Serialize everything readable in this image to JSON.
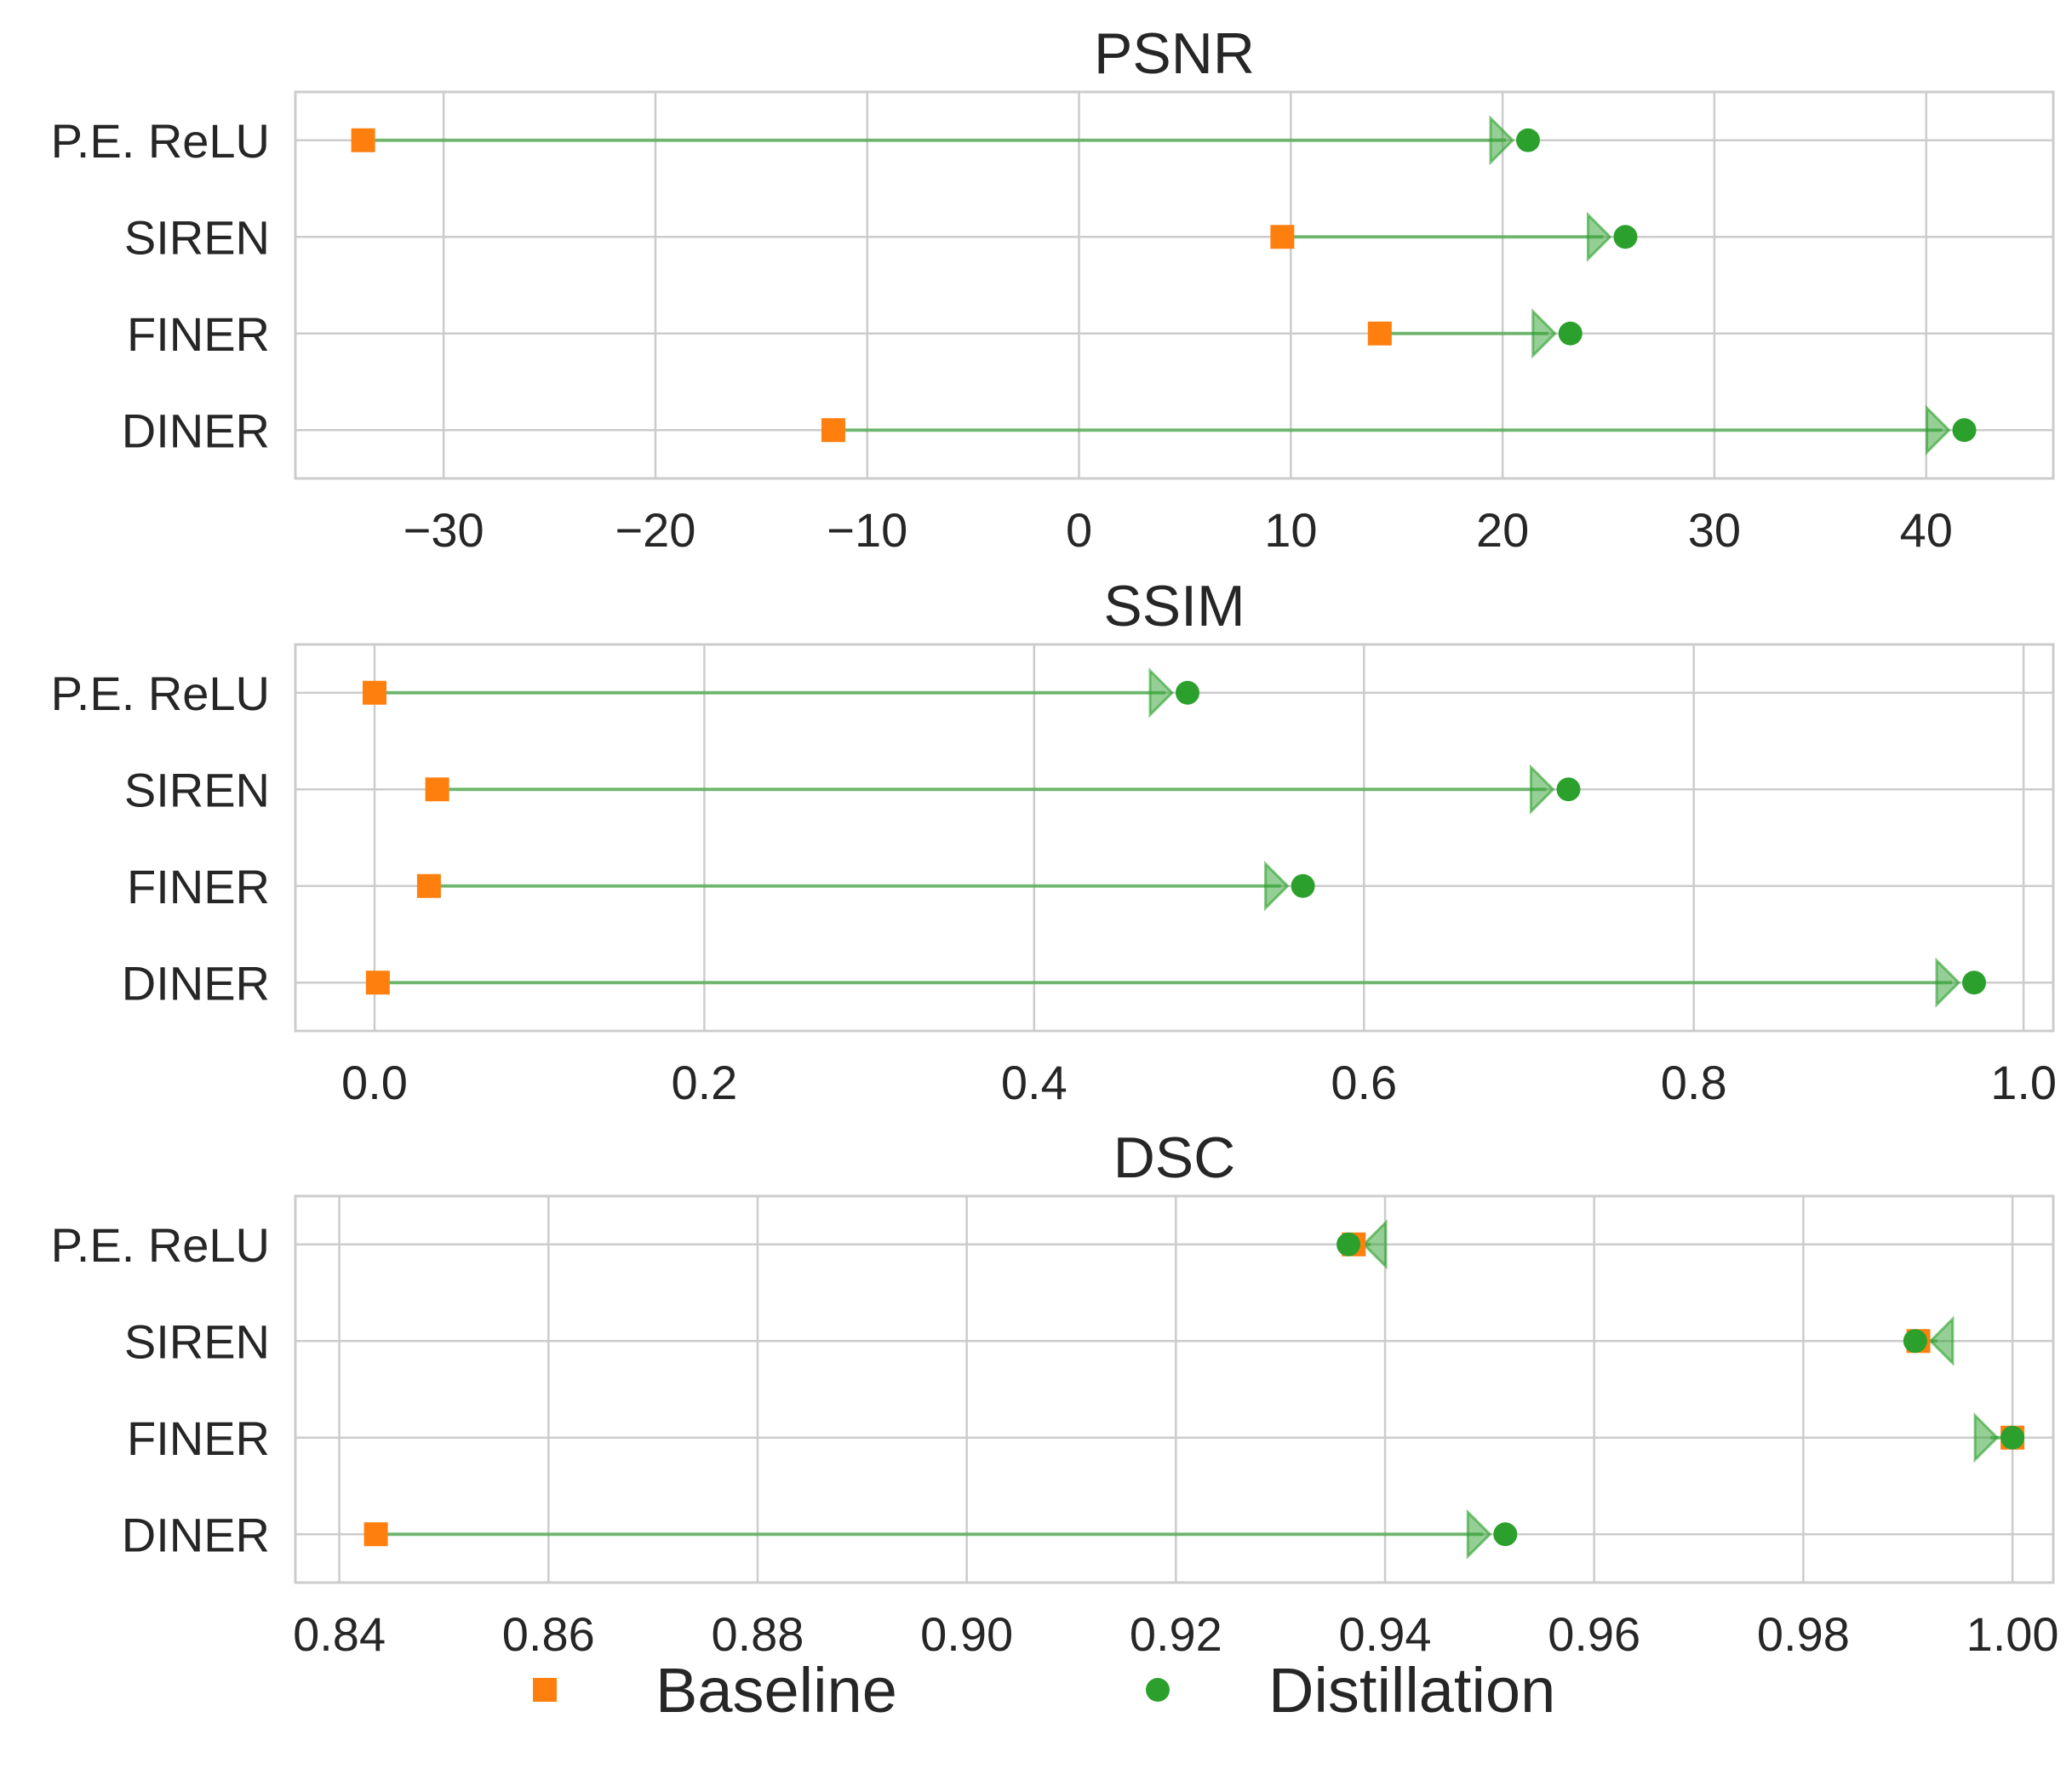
{
  "chart_data": [
    {
      "type": "dumbbell",
      "title": "PSNR",
      "xlabel": "",
      "ylabel": "",
      "categories": [
        "P.E. ReLU",
        "SIREN",
        "FINER",
        "DINER"
      ],
      "series": [
        {
          "name": "Baseline",
          "values": [
            -33.8,
            9.6,
            14.2,
            -11.6
          ]
        },
        {
          "name": "Distillation",
          "values": [
            21.2,
            25.8,
            23.2,
            41.8
          ]
        }
      ],
      "xlim": [
        -37,
        46
      ],
      "xticks": [
        -30,
        -20,
        -10,
        0,
        10,
        20,
        30,
        40
      ],
      "xtick_labels": [
        "−30",
        "−20",
        "−10",
        "0",
        "10",
        "20",
        "30",
        "40"
      ],
      "grid": true
    },
    {
      "type": "dumbbell",
      "title": "SSIM",
      "xlabel": "",
      "ylabel": "",
      "categories": [
        "P.E. ReLU",
        "SIREN",
        "FINER",
        "DINER"
      ],
      "series": [
        {
          "name": "Baseline",
          "values": [
            0.0,
            0.038,
            0.033,
            0.002
          ]
        },
        {
          "name": "Distillation",
          "values": [
            0.493,
            0.724,
            0.563,
            0.97
          ]
        }
      ],
      "xlim": [
        -0.048,
        1.018
      ],
      "xticks": [
        0.0,
        0.2,
        0.4,
        0.6,
        0.8,
        1.0
      ],
      "xtick_labels": [
        "0.0",
        "0.2",
        "0.4",
        "0.6",
        "0.8",
        "1.0"
      ],
      "grid": true
    },
    {
      "type": "dumbbell",
      "title": "DSC",
      "xlabel": "",
      "ylabel": "",
      "categories": [
        "P.E. ReLU",
        "SIREN",
        "FINER",
        "DINER"
      ],
      "series": [
        {
          "name": "Baseline",
          "values": [
            0.937,
            0.991,
            1.0,
            0.8435
          ]
        },
        {
          "name": "Distillation",
          "values": [
            0.9365,
            0.9907,
            1.0,
            0.9515
          ]
        }
      ],
      "xlim": [
        0.8358,
        1.0039
      ],
      "xticks": [
        0.84,
        0.86,
        0.88,
        0.9,
        0.92,
        0.94,
        0.96,
        0.98,
        1.0
      ],
      "xtick_labels": [
        "0.84",
        "0.86",
        "0.88",
        "0.90",
        "0.92",
        "0.94",
        "0.96",
        "0.98",
        "1.00"
      ],
      "grid": true
    }
  ],
  "legend": {
    "placement": "bottom-center",
    "items": [
      {
        "label": "Baseline",
        "marker": "square",
        "color": "#ff7f0e"
      },
      {
        "label": "Distillation",
        "marker": "circle",
        "color": "#2ca02c"
      }
    ]
  },
  "colors": {
    "baseline": "#ff7f0e",
    "distillation": "#2ca02c",
    "connector": "#2ca02c",
    "grid": "#cccccc",
    "spine": "#cccccc",
    "text": "#262626"
  }
}
